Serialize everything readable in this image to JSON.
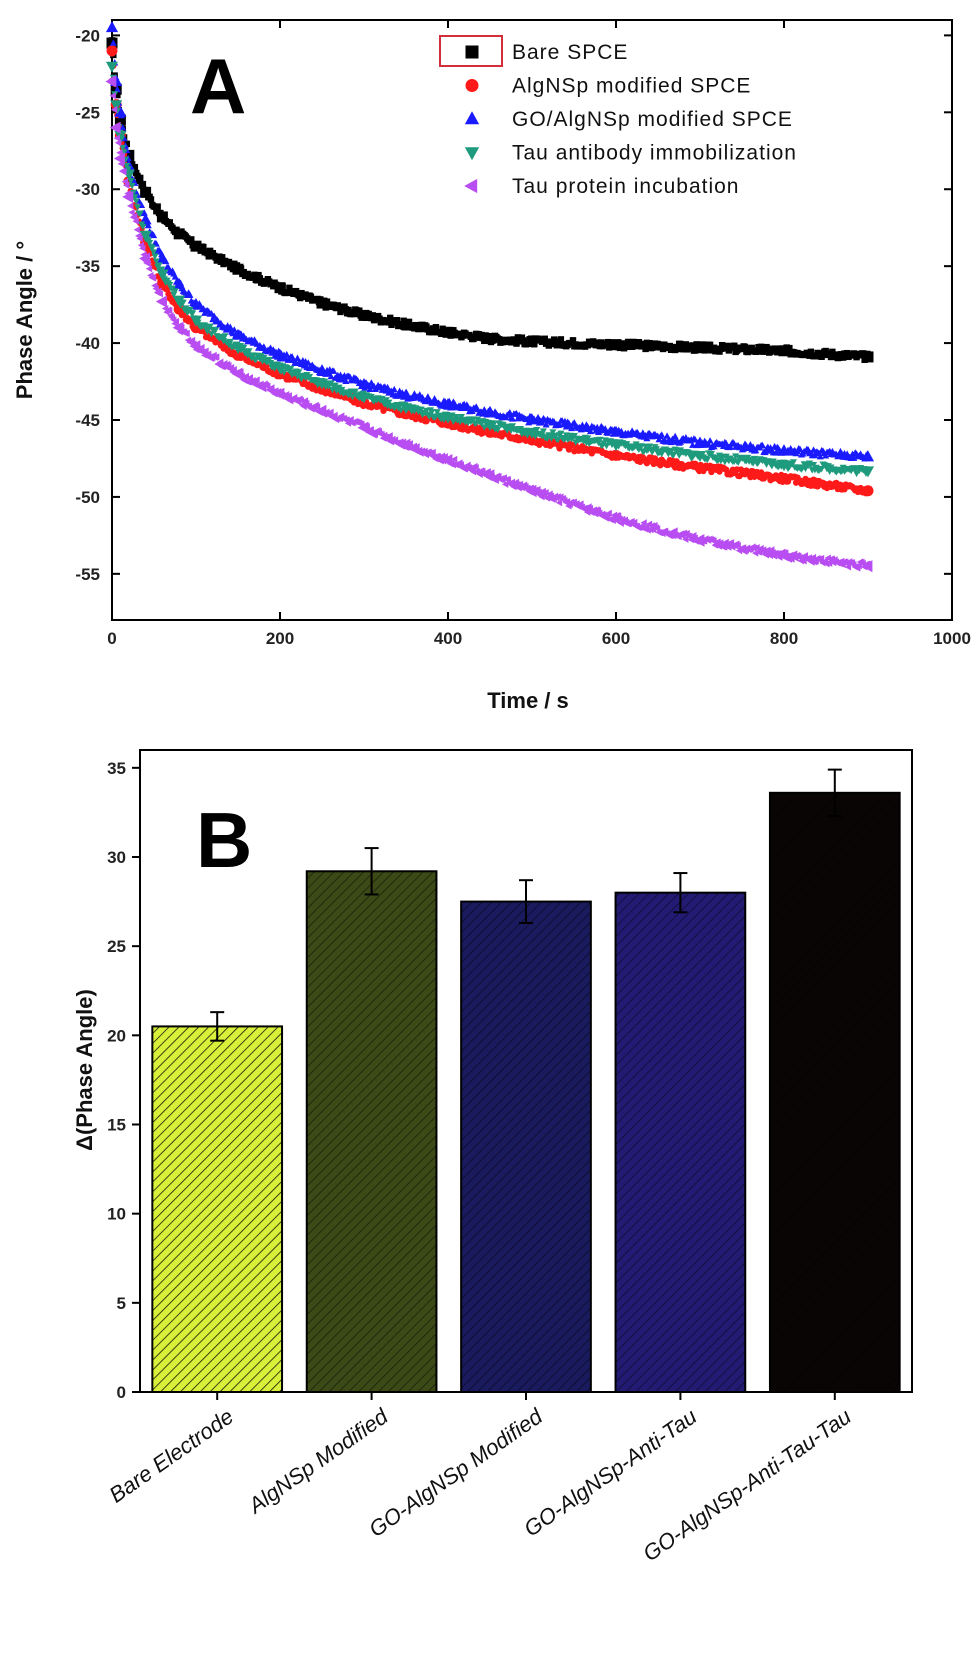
{
  "chart_data": [
    {
      "type": "scatter",
      "panel_label": "A",
      "xlabel": "Time / s",
      "ylabel": "Phase Angle / °",
      "xlim": [
        0,
        1000
      ],
      "ylim": [
        -58,
        -19
      ],
      "xticks": [
        0,
        200,
        400,
        600,
        800,
        1000
      ],
      "yticks": [
        -20,
        -25,
        -30,
        -35,
        -40,
        -45,
        -50,
        -55
      ],
      "legend_position": "top-right",
      "series": [
        {
          "name": "Bare SPCE",
          "marker": "square",
          "color": "#000000",
          "x": [
            0,
            5,
            10,
            20,
            40,
            60,
            80,
            100,
            150,
            200,
            250,
            300,
            350,
            400,
            450,
            500,
            600,
            700,
            800,
            900
          ],
          "y": [
            -20.5,
            -23.5,
            -25.5,
            -27.8,
            -30.2,
            -31.8,
            -32.9,
            -33.7,
            -35.2,
            -36.4,
            -37.4,
            -38.2,
            -38.8,
            -39.3,
            -39.7,
            -39.9,
            -40.1,
            -40.3,
            -40.5,
            -40.9
          ]
        },
        {
          "name": "AlgNSp modified SPCE",
          "marker": "circle",
          "color": "#ff1a1a",
          "x": [
            0,
            5,
            10,
            20,
            40,
            60,
            80,
            100,
            150,
            200,
            250,
            300,
            350,
            400,
            450,
            500,
            600,
            700,
            800,
            900
          ],
          "y": [
            -21,
            -24.5,
            -26.5,
            -29.5,
            -33.5,
            -36.2,
            -37.8,
            -39,
            -40.8,
            -42,
            -43,
            -43.9,
            -44.6,
            -45.2,
            -45.8,
            -46.3,
            -47.3,
            -48.1,
            -48.8,
            -49.6
          ]
        },
        {
          "name": "GO/AlgNSp modified SPCE",
          "marker": "triangle-up",
          "color": "#1a1aff",
          "x": [
            0,
            5,
            10,
            20,
            40,
            60,
            80,
            100,
            150,
            200,
            250,
            300,
            350,
            400,
            450,
            500,
            600,
            700,
            800,
            900
          ],
          "y": [
            -19.5,
            -23,
            -25,
            -28.5,
            -32,
            -34.5,
            -36.2,
            -37.5,
            -39.5,
            -40.8,
            -41.8,
            -42.7,
            -43.4,
            -44,
            -44.5,
            -45,
            -45.8,
            -46.5,
            -47,
            -47.4
          ]
        },
        {
          "name": "Tau antibody immobilization",
          "marker": "triangle-down",
          "color": "#1e9a7c",
          "x": [
            0,
            5,
            10,
            20,
            40,
            60,
            80,
            100,
            150,
            200,
            250,
            300,
            350,
            400,
            450,
            500,
            600,
            700,
            800,
            900
          ],
          "y": [
            -22,
            -24.5,
            -26.5,
            -29,
            -33,
            -35.5,
            -37.2,
            -38.5,
            -40.3,
            -41.6,
            -42.6,
            -43.5,
            -44.2,
            -44.8,
            -45.3,
            -45.8,
            -46.6,
            -47.3,
            -47.9,
            -48.3
          ]
        },
        {
          "name": "Tau protein incubation",
          "marker": "triangle-left",
          "color": "#b84df2",
          "x": [
            0,
            5,
            10,
            20,
            40,
            60,
            80,
            100,
            150,
            200,
            250,
            300,
            350,
            400,
            450,
            500,
            600,
            700,
            800,
            900
          ],
          "y": [
            -23,
            -26,
            -28,
            -30.5,
            -34.5,
            -37.3,
            -39,
            -40.2,
            -42,
            -43.3,
            -44.4,
            -45.5,
            -46.6,
            -47.6,
            -48.6,
            -49.6,
            -51.4,
            -52.8,
            -53.8,
            -54.5
          ]
        }
      ]
    },
    {
      "type": "bar",
      "panel_label": "B",
      "ylabel": "Δ(Phase Angle)",
      "ylim": [
        0,
        36
      ],
      "yticks": [
        0,
        5,
        10,
        15,
        20,
        25,
        30,
        35
      ],
      "categories": [
        "Bare Electrode",
        "AlgNSp Modified",
        "GO-AlgNSp Modified",
        "GO-AlgNSp-Anti-Tau",
        "GO-AlgNSp-Anti-Tau-Tau"
      ],
      "values": [
        20.5,
        29.2,
        27.5,
        28,
        33.6
      ],
      "errors": [
        0.8,
        1.3,
        1.2,
        1.1,
        1.3
      ],
      "colors": [
        "#d8f03a",
        "#3b4a16",
        "#1a1a5e",
        "#231b73",
        "#0a0505"
      ]
    }
  ]
}
